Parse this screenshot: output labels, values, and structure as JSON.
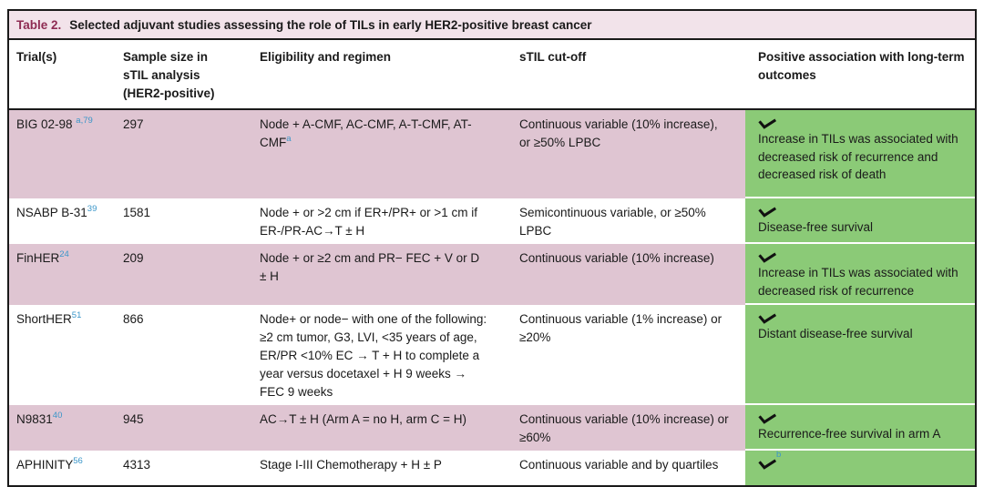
{
  "table": {
    "title_label": "Table 2.",
    "title_text": "Selected adjuvant studies assessing the role of TILs in early HER2-positive breast cancer",
    "columns": [
      "Trial(s)",
      "Sample size in sTIL analysis (HER2-positive)",
      "Eligibility and regimen",
      "sTIL cut-off",
      "Positive association with long-term outcomes"
    ],
    "rows": [
      {
        "trial": "BIG 02-98 ",
        "trial_sup": "a,79",
        "sample_size": "297",
        "eligibility": "Node + A-CMF, AC-CMF, A-T-CMF, AT-CMF",
        "eligibility_sup": "a",
        "cutoff": "Continuous variable (10% increase), or ≥50% LPBC",
        "outcome_check": "check-icon",
        "outcome_sup": "",
        "outcome": "Increase in TILs was associated with decreased risk of recurrence and decreased risk of death",
        "shaded": true
      },
      {
        "trial": "NSABP B-31",
        "trial_sup": "39",
        "sample_size": "1581",
        "eligibility": "Node + or >2 cm if ER+/PR+ or >1 cm if ER-/PR-AC→T ± H",
        "eligibility_sup": "",
        "cutoff": "Semicontinuous variable, or ≥50% LPBC",
        "outcome_check": "check-icon",
        "outcome_sup": "",
        "outcome": "Disease-free survival",
        "shaded": false
      },
      {
        "trial": "FinHER",
        "trial_sup": "24",
        "sample_size": "209",
        "eligibility": "Node + or ≥2 cm and PR− FEC + V or D ± H",
        "eligibility_sup": "",
        "cutoff": "Continuous variable (10% increase)",
        "outcome_check": "check-icon",
        "outcome_sup": "",
        "outcome": "Increase in TILs was associated with decreased risk of recurrence",
        "shaded": true
      },
      {
        "trial": "ShortHER",
        "trial_sup": "51",
        "sample_size": "866",
        "eligibility": "Node+ or node− with one of the following: ≥2 cm tumor, G3, LVI, <35 years of age, ER/PR <10% EC → T + H to complete a year versus docetaxel + H 9 weeks → FEC 9 weeks",
        "eligibility_sup": "",
        "cutoff": "Continuous variable (1% increase) or ≥20%",
        "outcome_check": "check-icon",
        "outcome_sup": "",
        "outcome": "Distant disease-free survival",
        "shaded": false
      },
      {
        "trial": "N9831",
        "trial_sup": "40",
        "sample_size": "945",
        "eligibility": "AC→T ± H (Arm A = no H, arm C = H)",
        "eligibility_sup": "",
        "cutoff": "Continuous variable (10% increase) or ≥60%",
        "outcome_check": "check-icon",
        "outcome_sup": "",
        "outcome": "Recurrence-free survival in arm A",
        "shaded": true
      },
      {
        "trial": "APHINITY",
        "trial_sup": "56",
        "sample_size": "4313",
        "eligibility": "Stage I-III Chemotherapy + H ± P",
        "eligibility_sup": "",
        "cutoff": "Continuous variable and by quartiles",
        "outcome_check": "check-icon",
        "outcome_sup": "b",
        "outcome": "",
        "shaded": false
      }
    ],
    "colors": {
      "accent": "#8e2b52",
      "row_shade": "#dfc5d2",
      "outcome_green": "#8bca77",
      "ref_blue": "#3a96c9",
      "title_bar": "#f2e3ea"
    }
  }
}
